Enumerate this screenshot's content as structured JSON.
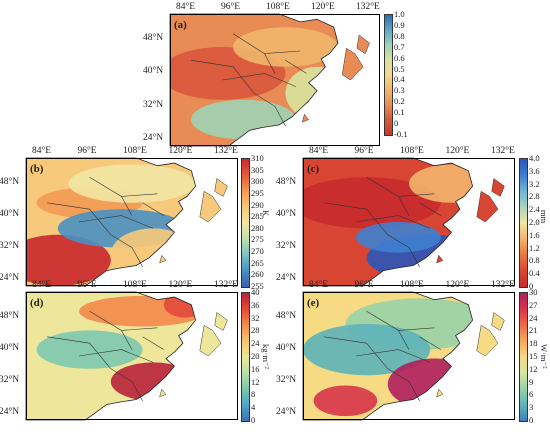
{
  "lon_ticks": [
    "84°E",
    "96°E",
    "108°E",
    "120°E",
    "132°E"
  ],
  "lat_ticks": [
    "48°N",
    "40°N",
    "32°N",
    "24°N"
  ],
  "panels": [
    {
      "label": "(a)",
      "unit": "",
      "ticks": [
        "1.0",
        "0.9",
        "0.8",
        "0.7",
        "0.6",
        "0.5",
        "0.4",
        "0.3",
        "0.2",
        "0.1",
        "0",
        "-0.1"
      ],
      "colors": [
        "#2c6fb3",
        "#5aa9c8",
        "#9ed3b5",
        "#d9e3a0",
        "#f3d98c",
        "#f0b66a",
        "#e88b54",
        "#d9563c",
        "#c43a2f"
      ]
    },
    {
      "label": "(b)",
      "unit": "K",
      "ticks": [
        "310",
        "305",
        "300",
        "295",
        "290",
        "285",
        "280",
        "275",
        "270",
        "265",
        "260",
        "255"
      ],
      "colors": [
        "#c8282d",
        "#e45a38",
        "#f39a54",
        "#f7c97b",
        "#f2e6a4",
        "#bfe0b0",
        "#7cc1c1",
        "#4a90c2",
        "#3a5fb0"
      ]
    },
    {
      "label": "(c)",
      "unit": "mm",
      "ticks": [
        "4.0",
        "3.6",
        "3.2",
        "2.8",
        "2.4",
        "2.0",
        "1.6",
        "1.2",
        "0.8",
        "0.4",
        "0"
      ],
      "colors": [
        "#2b55b8",
        "#3f7fcf",
        "#6fb3d8",
        "#a7d4bf",
        "#f2e3a2",
        "#f3b46c",
        "#e9773f",
        "#d84633",
        "#c92a2e"
      ]
    },
    {
      "label": "(d)",
      "unit": "kg·m⁻²",
      "ticks": [
        "40",
        "36",
        "32",
        "28",
        "24",
        "20",
        "16",
        "12",
        "8",
        "4",
        "0"
      ],
      "colors": [
        "#b8223a",
        "#e24a3a",
        "#f28a4c",
        "#f7c470",
        "#eee79b",
        "#b9e0a6",
        "#7cc8b0",
        "#4fa4c8",
        "#3f6fb9"
      ]
    },
    {
      "label": "(e)",
      "unit": "W·m⁻²",
      "ticks": [
        "30",
        "27",
        "24",
        "21",
        "18",
        "15",
        "12",
        "9",
        "6",
        "3",
        "0"
      ],
      "colors": [
        "#b01f5c",
        "#d8344a",
        "#ef6b43",
        "#f6a85a",
        "#f6da84",
        "#d5e7a1",
        "#98d2a8",
        "#5db3b9",
        "#3c7fb9"
      ]
    }
  ]
}
